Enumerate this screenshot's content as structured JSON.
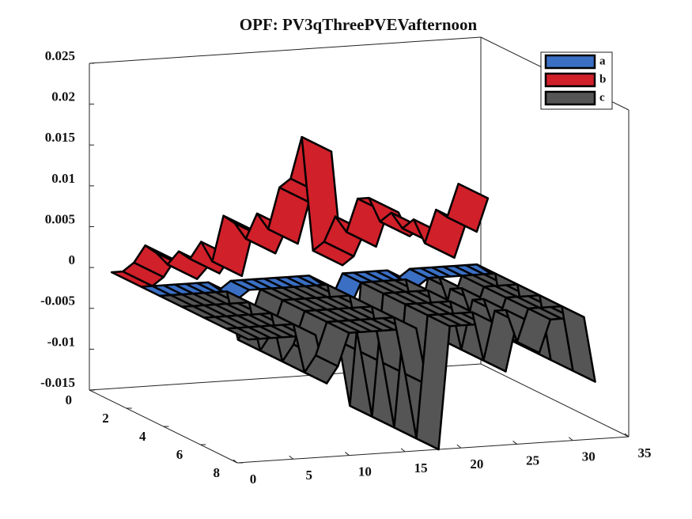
{
  "chart_data": {
    "type": "surface3d",
    "title": "OPF: PV3qThreePVEVafternoon",
    "x": [
      1,
      2,
      3,
      4,
      5,
      6,
      7,
      8,
      9,
      10,
      11,
      12,
      13,
      14,
      15,
      16,
      17,
      18,
      19,
      20,
      21,
      22,
      23,
      24,
      25,
      26,
      27,
      28,
      29,
      30,
      31,
      32
    ],
    "series": [
      {
        "name": "a",
        "color": "#3a6fc4",
        "values": [
          0,
          0,
          0,
          0,
          0,
          0,
          0,
          -0.001,
          0,
          0,
          0,
          0,
          0,
          0,
          0,
          0,
          -0.001,
          -0.003,
          0,
          0,
          0,
          0,
          0,
          -0.001,
          0,
          0,
          0,
          0,
          0,
          0,
          0,
          -0.001
        ]
      },
      {
        "name": "b",
        "color": "#d0202a",
        "values": [
          0,
          0,
          0.001,
          0.003,
          0.002,
          0.0005,
          0.002,
          0.001,
          0.003,
          0.0005,
          0.006,
          0.005,
          0.003,
          0.006,
          0.004,
          0.009,
          0.01,
          0.015,
          0.001,
          0.002,
          0.005,
          0.003,
          0.007,
          0.007,
          0.004,
          0.005,
          0.003,
          0.004,
          0.001,
          0.005,
          0.004,
          0.008
        ]
      },
      {
        "name": "c",
        "color": "#555555",
        "values": [
          0,
          0,
          0,
          0,
          0,
          0,
          0,
          -0.006,
          -0.004,
          0,
          0,
          0,
          0,
          0,
          0,
          0,
          -0.007,
          -0.015,
          0,
          0,
          0,
          0,
          0,
          -0.006,
          0,
          0,
          -0.004,
          0,
          0,
          0,
          0,
          -0.008
        ]
      }
    ],
    "xlim": [
      0,
      35
    ],
    "xticks": [
      0,
      5,
      10,
      15,
      20,
      25,
      30,
      35
    ],
    "ylim": [
      0,
      8
    ],
    "yticks": [
      0,
      2,
      4,
      6,
      8
    ],
    "zlim": [
      -0.015,
      0.025
    ],
    "zticks": [
      -0.015,
      -0.01,
      -0.005,
      0,
      0.005,
      0.01,
      0.015,
      0.02,
      0.025
    ],
    "legend": "top-right"
  }
}
